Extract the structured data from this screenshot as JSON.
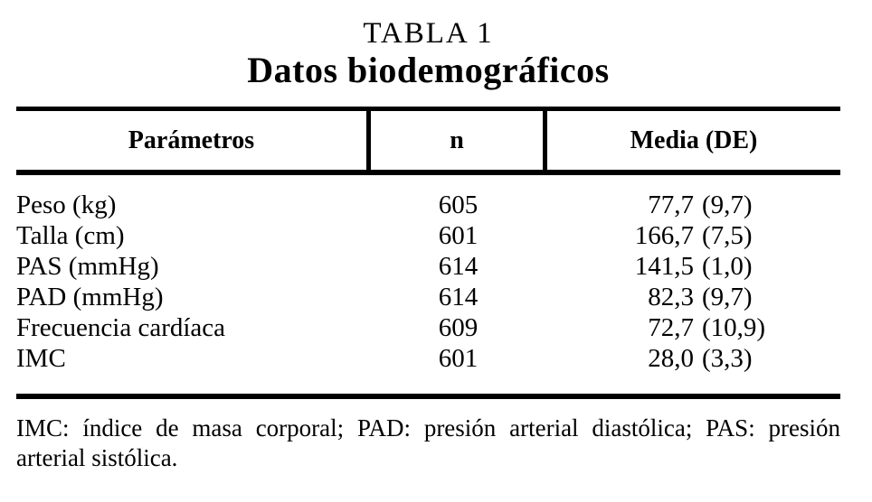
{
  "title": {
    "label": "TABLA 1",
    "subtitle": "Datos biodemográficos"
  },
  "table": {
    "columns": [
      "Parámetros",
      "n",
      "Media (DE)"
    ],
    "rows": [
      {
        "parametro": "Peso (kg)",
        "n": "605",
        "media": "77,7",
        "de": "(9,7)"
      },
      {
        "parametro": "Talla (cm)",
        "n": "601",
        "media": "166,7",
        "de": "(7,5)"
      },
      {
        "parametro": "PAS (mmHg)",
        "n": "614",
        "media": "141,5",
        "de": "(1,0)"
      },
      {
        "parametro": "PAD (mmHg)",
        "n": "614",
        "media": "82,3",
        "de": "(9,7)"
      },
      {
        "parametro": "Frecuencia cardíaca",
        "n": "609",
        "media": "72,7",
        "de": "(10,9)"
      },
      {
        "parametro": "IMC",
        "n": "601",
        "media": "28,0",
        "de": "(3,3)"
      }
    ]
  },
  "footnote": {
    "lines": [
      "IMC: índice de masa corporal; PAD: presión arterial diastólica; PAS: presión",
      "arterial sistólica."
    ]
  },
  "colors": {
    "text": "#000000",
    "background": "#ffffff",
    "rule": "#000000"
  }
}
